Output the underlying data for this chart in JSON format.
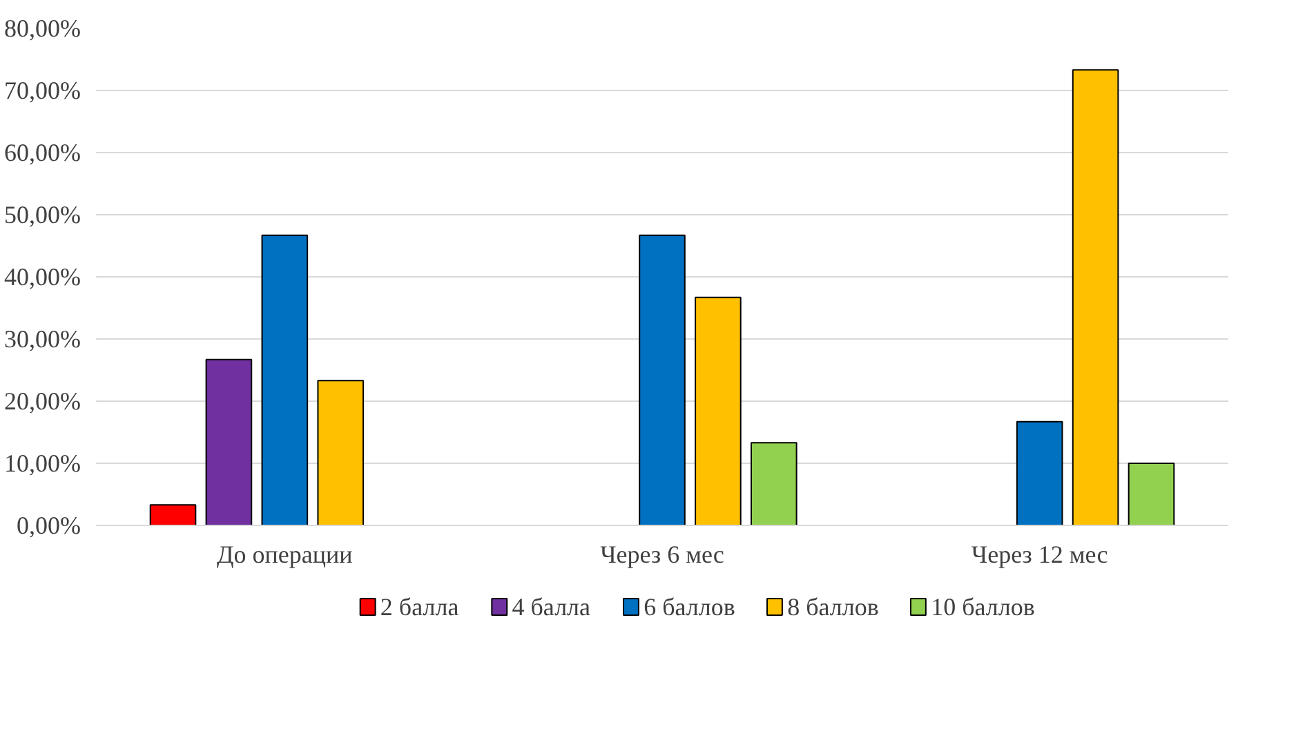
{
  "chart_data": {
    "type": "bar",
    "categories": [
      "До операции",
      "Через 6 мес",
      "Через 12 мес"
    ],
    "series": [
      {
        "name": "2 балла",
        "color": "#ff0000",
        "values": [
          3.3,
          null,
          null
        ]
      },
      {
        "name": "4 балла",
        "color": "#7030a0",
        "values": [
          26.7,
          null,
          null
        ]
      },
      {
        "name": "6 баллов",
        "color": "#0070c0",
        "values": [
          46.7,
          46.7,
          16.7
        ]
      },
      {
        "name": "8 баллов",
        "color": "#ffc000",
        "values": [
          23.3,
          36.7,
          73.3
        ]
      },
      {
        "name": "10 баллов",
        "color": "#92d050",
        "values": [
          null,
          13.3,
          10
        ]
      }
    ],
    "ylim": [
      0,
      80
    ],
    "yticks": [
      {
        "value": 0,
        "label": "0,00%"
      },
      {
        "value": 10,
        "label": "10,00%"
      },
      {
        "value": 20,
        "label": "20,00%"
      },
      {
        "value": 30,
        "label": "30,00%"
      },
      {
        "value": 40,
        "label": "40,00%"
      },
      {
        "value": 50,
        "label": "50,00%"
      },
      {
        "value": 60,
        "label": "60,00%"
      },
      {
        "value": 70,
        "label": "70,00%"
      },
      {
        "value": 80,
        "label": "80,00%"
      }
    ],
    "grid": "y",
    "legend": "bottom"
  }
}
